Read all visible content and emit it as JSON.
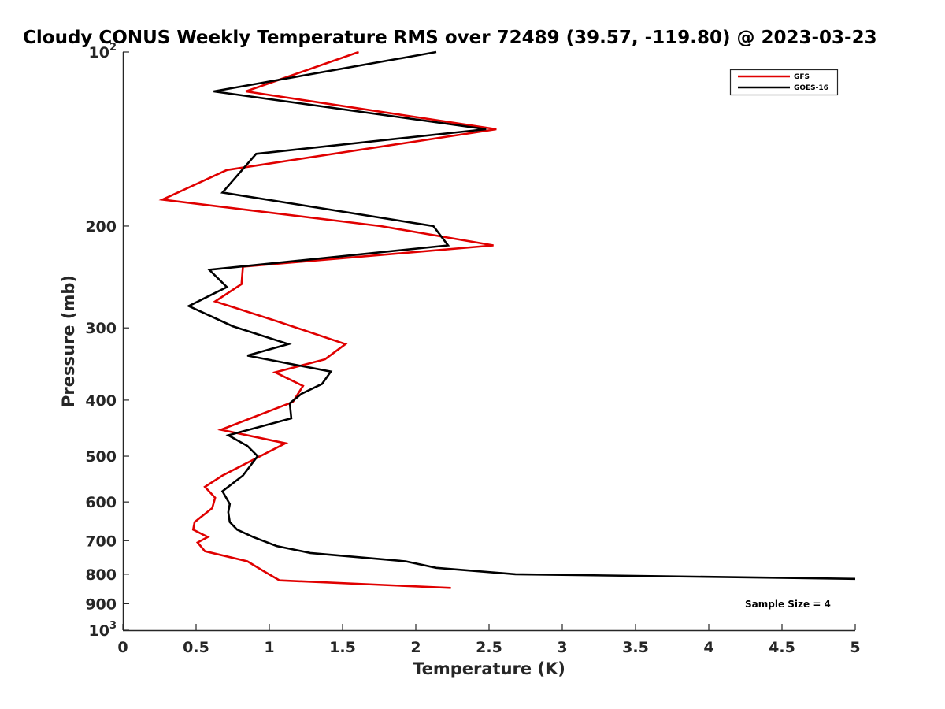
{
  "chart_data": {
    "type": "line",
    "title": "Cloudy CONUS Weekly Temperature RMS over 72489 (39.57, -119.80) @ 2023-03-23",
    "xlabel": "Temperature (K)",
    "ylabel": "Pressure (mb)",
    "xlim": [
      0,
      5
    ],
    "ylim": [
      100,
      1000
    ],
    "y_scale": "log",
    "y_reversed": true,
    "x_ticks": [
      0,
      0.5,
      1,
      1.5,
      2,
      2.5,
      3,
      3.5,
      4,
      4.5,
      5
    ],
    "x_tick_labels": [
      "0",
      "0.5",
      "1",
      "1.5",
      "2",
      "2.5",
      "3",
      "3.5",
      "4",
      "4.5",
      "5"
    ],
    "y_ticks": [
      100,
      200,
      300,
      400,
      500,
      600,
      700,
      800,
      900,
      1000
    ],
    "y_tick_labels": [
      {
        "base": "10",
        "exp": "2"
      },
      {
        "base": "200",
        "exp": ""
      },
      {
        "base": "300",
        "exp": ""
      },
      {
        "base": "400",
        "exp": ""
      },
      {
        "base": "500",
        "exp": ""
      },
      {
        "base": "600",
        "exp": ""
      },
      {
        "base": "700",
        "exp": ""
      },
      {
        "base": "800",
        "exp": ""
      },
      {
        "base": "900",
        "exp": ""
      },
      {
        "base": "10",
        "exp": "3"
      }
    ],
    "grid": false,
    "legend_position": "top-right",
    "series": [
      {
        "name": "GFS",
        "color": "#e00000",
        "x": [
          1.61,
          0.84,
          2.55,
          0.71,
          0.27,
          1.76,
          2.53,
          0.82,
          0.81,
          0.63,
          1.05,
          1.52,
          1.38,
          1.04,
          1.23,
          1.16,
          0.67,
          1.11,
          0.68,
          0.56,
          0.63,
          0.61,
          0.49,
          0.48,
          0.58,
          0.51,
          0.56,
          0.85,
          0.96,
          1.07,
          2.24
        ],
        "y": [
          100,
          117,
          136,
          160,
          180,
          200,
          216,
          235,
          252,
          270,
          292,
          320,
          340,
          358,
          378,
          403,
          450,
          475,
          540,
          565,
          590,
          615,
          650,
          670,
          690,
          705,
          730,
          760,
          790,
          820,
          845
        ]
      },
      {
        "name": "GOES-16",
        "color": "#000000",
        "x": [
          2.14,
          0.62,
          2.48,
          0.91,
          0.68,
          2.12,
          2.22,
          0.59,
          0.71,
          0.45,
          0.75,
          1.13,
          0.85,
          1.42,
          1.36,
          1.22,
          1.14,
          1.15,
          0.72,
          0.85,
          0.92,
          0.82,
          0.68,
          0.73,
          0.72,
          0.73,
          0.78,
          0.89,
          1.05,
          1.28,
          1.93,
          2.14,
          2.68,
          5.0
        ],
        "y": [
          100,
          117,
          136,
          150,
          175,
          200,
          216,
          238,
          255,
          275,
          298,
          320,
          335,
          357,
          375,
          390,
          405,
          430,
          460,
          480,
          500,
          540,
          575,
          605,
          625,
          650,
          670,
          690,
          715,
          735,
          760,
          780,
          800,
          815
        ]
      }
    ],
    "annotations": [
      "Sample Size = 4"
    ]
  }
}
